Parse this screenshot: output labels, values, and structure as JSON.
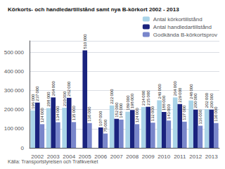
{
  "chart_data": {
    "type": "bar",
    "title": "Körkorts- och handledartillstånd samt nya B-körkort 2002 - 2013",
    "annotations": [
      "Källa: Transportstyrelsen och Trafikverket"
    ],
    "categories": [
      "2002",
      "2003",
      "2004",
      "2005",
      "2006",
      "2007",
      "2008",
      "2009",
      "2010",
      "2011",
      "2012",
      "2013"
    ],
    "series": [
      {
        "name": "Antal körkortillstånd",
        "color": "#aad4e8",
        "values": [
          196000,
          208000,
          210000,
          0,
          0,
          222000,
          189000,
          214000,
          249000,
          264000,
          248000,
          202000
        ],
        "value_labels": [
          "196 000",
          "208 000",
          "210 000",
          null,
          null,
          "222 000",
          "189 000",
          "214 000",
          "249 000",
          "264 000",
          "248 000",
          "202 000"
        ]
      },
      {
        "name": "Antal handledartillstånd",
        "color": "#1a237e",
        "values": [
          237000,
          264000,
          262000,
          510000,
          107000,
          152000,
          198000,
          215000,
          188000,
          229000,
          200000,
          200000
        ],
        "value_labels": [
          "237 000",
          "264 000",
          "262 000",
          "510 000",
          "107 000",
          "152 000",
          "198 000",
          "215 000",
          "188 000",
          "229 000",
          "200 000",
          "200 000"
        ]
      },
      {
        "name": "Godkända B-körkortsprov",
        "color": "#7986cb",
        "values": [
          124000,
          134000,
          135000,
          130000,
          75000,
          148000,
          124000,
          132000,
          143000,
          137000,
          116000,
          130000
        ],
        "value_labels": [
          "124 000",
          "134 000",
          "135 000",
          "130 000",
          "75 000",
          "148 000",
          "124 000",
          "132 000",
          "143 000",
          "137 000",
          "116 000",
          "130 000"
        ]
      }
    ],
    "ylim": [
      0,
      560000
    ],
    "yticks": [
      0,
      {
        "value": 100000,
        "label": "100 000"
      },
      {
        "value": 200000,
        "label": "200 000"
      },
      {
        "value": 300000,
        "label": "300 000"
      },
      {
        "value": 400000,
        "label": "400 000"
      },
      {
        "value": 500000,
        "label": "500 000"
      }
    ],
    "grid": true,
    "legend": "upper right",
    "data_labels": true
  }
}
